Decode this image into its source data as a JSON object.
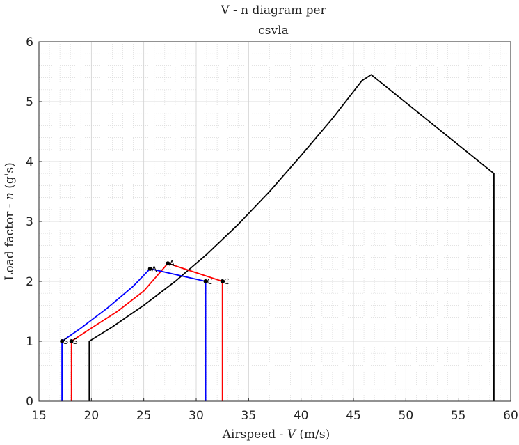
{
  "chart_data": {
    "type": "line",
    "title_lines": [
      "V - n diagram per",
      "csvla"
    ],
    "xlabel_parts": [
      "Airspeed - ",
      "V",
      " (m/s)"
    ],
    "ylabel_parts": [
      "Load factor - ",
      "n",
      " (g's)"
    ],
    "xlim": [
      15,
      60
    ],
    "ylim": [
      0,
      6
    ],
    "xticks": [
      15,
      20,
      25,
      30,
      35,
      40,
      45,
      50,
      55,
      60
    ],
    "yticks": [
      0,
      1,
      2,
      3,
      4,
      5,
      6
    ],
    "grid": true,
    "minor_grid": true,
    "series": [
      {
        "color": "#000000",
        "points": [
          [
            19.8,
            0
          ],
          [
            19.8,
            1.0
          ],
          [
            22,
            1.24
          ],
          [
            25,
            1.6
          ],
          [
            28,
            2.0
          ],
          [
            31,
            2.45
          ],
          [
            34,
            2.95
          ],
          [
            37,
            3.5
          ],
          [
            40,
            4.1
          ],
          [
            43,
            4.72
          ],
          [
            45.8,
            5.35
          ],
          [
            46.7,
            5.45
          ],
          [
            58.4,
            3.8
          ],
          [
            58.4,
            0
          ]
        ]
      },
      {
        "color": "#ff0000",
        "points": [
          [
            18.1,
            0
          ],
          [
            18.1,
            1.0
          ],
          [
            20,
            1.22
          ],
          [
            22.5,
            1.5
          ],
          [
            25,
            1.84
          ],
          [
            27.3,
            2.3
          ],
          [
            32.5,
            2.0
          ],
          [
            32.5,
            0
          ]
        ]
      },
      {
        "color": "#0000ff",
        "points": [
          [
            17.2,
            0
          ],
          [
            17.2,
            1.0
          ],
          [
            19,
            1.22
          ],
          [
            21.5,
            1.55
          ],
          [
            24,
            1.92
          ],
          [
            25.6,
            2.21
          ],
          [
            30.9,
            2.0
          ],
          [
            30.9,
            0
          ]
        ]
      }
    ],
    "markers": [
      {
        "x": 17.2,
        "y": 1.0,
        "label": "S"
      },
      {
        "x": 18.1,
        "y": 1.0,
        "label": "S"
      },
      {
        "x": 25.6,
        "y": 2.21,
        "label": "A"
      },
      {
        "x": 27.3,
        "y": 2.3,
        "label": "A"
      },
      {
        "x": 30.9,
        "y": 2.0,
        "label": "C"
      },
      {
        "x": 32.5,
        "y": 2.0,
        "label": "C"
      }
    ]
  }
}
